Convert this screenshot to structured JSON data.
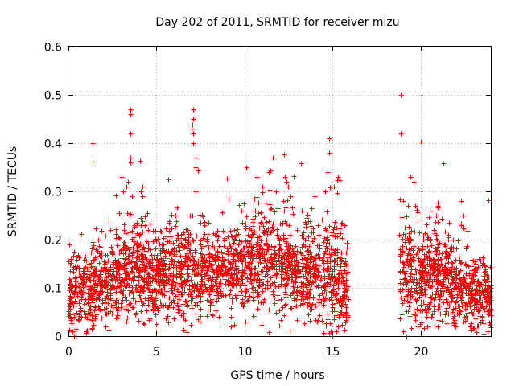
{
  "chart_data": {
    "type": "scatter",
    "title": "Day 202 of 2011, SRMTID for receiver mizu",
    "xlabel": "GPS time / hours",
    "ylabel": "SRMTID / TECUs",
    "xlim": [
      0,
      24
    ],
    "ylim": [
      0,
      0.6
    ],
    "xticks": [
      0,
      5,
      10,
      15,
      20
    ],
    "xtick_labels": [
      "0",
      "5",
      "10",
      "15",
      "20"
    ],
    "yticks": [
      0,
      0.1,
      0.2,
      0.3,
      0.4,
      0.5,
      0.6
    ],
    "ytick_labels": [
      "0",
      "0.1",
      "0.2",
      "0.3",
      "0.4",
      "0.5",
      "0.6"
    ],
    "grid": true,
    "marker": "+",
    "color": "#ff0000",
    "series": [
      {
        "name": "SRMTID",
        "segments": [
          {
            "x_start": 0.0,
            "x_end": 15.9,
            "density_per_hour": 150,
            "envelope": [
              [
                0.0,
                0.09,
                0.04
              ],
              [
                1.0,
                0.1,
                0.04
              ],
              [
                2.0,
                0.11,
                0.045
              ],
              [
                3.0,
                0.13,
                0.05
              ],
              [
                4.0,
                0.14,
                0.05
              ],
              [
                5.0,
                0.12,
                0.045
              ],
              [
                6.0,
                0.14,
                0.05
              ],
              [
                7.0,
                0.14,
                0.05
              ],
              [
                8.0,
                0.13,
                0.045
              ],
              [
                9.0,
                0.13,
                0.045
              ],
              [
                10.0,
                0.15,
                0.05
              ],
              [
                11.0,
                0.16,
                0.05
              ],
              [
                12.0,
                0.16,
                0.05
              ],
              [
                13.0,
                0.14,
                0.05
              ],
              [
                14.0,
                0.13,
                0.05
              ],
              [
                15.0,
                0.12,
                0.06
              ],
              [
                15.9,
                0.1,
                0.05
              ]
            ]
          },
          {
            "x_start": 18.8,
            "x_end": 24.0,
            "density_per_hour": 150,
            "envelope": [
              [
                18.8,
                0.12,
                0.06
              ],
              [
                19.5,
                0.14,
                0.06
              ],
              [
                20.0,
                0.12,
                0.05
              ],
              [
                21.0,
                0.13,
                0.05
              ],
              [
                22.0,
                0.1,
                0.045
              ],
              [
                23.0,
                0.09,
                0.04
              ],
              [
                24.0,
                0.08,
                0.035
              ]
            ]
          }
        ],
        "peaks": [
          [
            3.5,
            0.47
          ],
          [
            3.5,
            0.46
          ],
          [
            3.5,
            0.42
          ],
          [
            3.5,
            0.37
          ],
          [
            3.5,
            0.36
          ],
          [
            3.4,
            0.32
          ],
          [
            3.6,
            0.29
          ],
          [
            3.3,
            0.31
          ],
          [
            4.2,
            0.31
          ],
          [
            4.1,
            0.3
          ],
          [
            4.2,
            0.29
          ],
          [
            3.0,
            0.33
          ],
          [
            3.1,
            0.3
          ],
          [
            7.1,
            0.47
          ],
          [
            7.1,
            0.45
          ],
          [
            7.0,
            0.43
          ],
          [
            7.1,
            0.42
          ],
          [
            7.1,
            0.4
          ],
          [
            7.2,
            0.37
          ],
          [
            7.2,
            0.35
          ],
          [
            7.2,
            0.3
          ],
          [
            10.7,
            0.33
          ],
          [
            11.0,
            0.31
          ],
          [
            11.4,
            0.34
          ],
          [
            11.6,
            0.37
          ],
          [
            11.8,
            0.3
          ],
          [
            12.3,
            0.33
          ],
          [
            12.4,
            0.32
          ],
          [
            12.5,
            0.31
          ],
          [
            12.6,
            0.29
          ],
          [
            12.2,
            0.28
          ],
          [
            14.8,
            0.41
          ],
          [
            14.8,
            0.38
          ],
          [
            14.7,
            0.34
          ],
          [
            14.6,
            0.3
          ],
          [
            15.1,
            0.31
          ],
          [
            15.3,
            0.33
          ],
          [
            18.9,
            0.5
          ],
          [
            18.9,
            0.42
          ],
          [
            19.0,
            0.28
          ],
          [
            19.3,
            0.27
          ],
          [
            19.6,
            0.32
          ],
          [
            19.7,
            0.27
          ],
          [
            21.0,
            0.27
          ],
          [
            20.9,
            0.25
          ],
          [
            22.3,
            0.28
          ],
          [
            22.4,
            0.25
          ],
          [
            22.3,
            0.23
          ]
        ],
        "lows": [
          [
            0.4,
            0.0
          ],
          [
            0.3,
            0.0
          ],
          [
            14.9,
            0.01
          ],
          [
            15.0,
            0.0
          ],
          [
            15.2,
            0.01
          ],
          [
            19.0,
            0.01
          ],
          [
            19.2,
            0.0
          ],
          [
            21.0,
            0.02
          ],
          [
            22.0,
            0.02
          ]
        ]
      }
    ]
  }
}
